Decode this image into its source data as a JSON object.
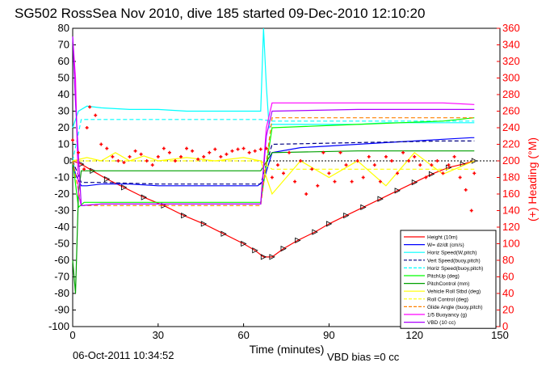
{
  "chart_data": {
    "type": "line",
    "title": "SG502 RossSea Nov 2010, dive 185 started 09-Dec-2010 12:10:20",
    "xlabel": "Time (minutes)",
    "ylabel_right": "(+) Heading (°M)",
    "xlim": [
      0,
      150
    ],
    "ylim_left": [
      -100,
      80
    ],
    "ylim_right": [
      0,
      360
    ],
    "xticks": [
      0,
      30,
      60,
      90,
      120,
      150
    ],
    "yticks_left": [
      80,
      70,
      60,
      50,
      40,
      30,
      20,
      10,
      0,
      -10,
      -20,
      -30,
      -40,
      -50,
      -60,
      -70,
      -80,
      -90,
      -100
    ],
    "yticks_right": [
      360,
      340,
      320,
      300,
      280,
      260,
      240,
      220,
      200,
      180,
      160,
      140,
      120,
      100,
      80,
      60,
      40,
      20,
      0
    ],
    "legend_position": "bottom-right",
    "footer_left": "06-Oct-2011 10:34:52",
    "footer_right": "VBD bias =0 cc",
    "colors": {
      "red": "#ff0000",
      "blue": "#0000ff",
      "cyan": "#00ffff",
      "green": "#00ff00",
      "darkgreen": "#00a000",
      "yellow": "#ffff00",
      "orange": "#ff8000",
      "magenta": "#ff00ff",
      "purple": "#aa00ff",
      "navy": "#000080",
      "heading": "#ff0000"
    },
    "series": [
      {
        "name": "Height (10m)",
        "color": "red",
        "style": "solid",
        "x": [
          0,
          3,
          7,
          12,
          18,
          25,
          32,
          39,
          46,
          53,
          60,
          64,
          67,
          70,
          74,
          79,
          85,
          90,
          96,
          102,
          108,
          114,
          120,
          126,
          132,
          137,
          141
        ],
        "y": [
          0,
          -2,
          -6,
          -11,
          -16,
          -22,
          -27,
          -33,
          -38,
          -44,
          -50,
          -54,
          -58,
          -58,
          -53,
          -48,
          -43,
          -38,
          -33,
          -28,
          -23,
          -18,
          -13,
          -8,
          -4,
          -2,
          0
        ]
      },
      {
        "name": "W= dz/dt (cm/s)",
        "color": "blue",
        "style": "solid",
        "x": [
          0,
          1,
          3,
          5,
          10,
          20,
          30,
          40,
          50,
          60,
          65,
          67,
          70,
          80,
          90,
          100,
          110,
          120,
          130,
          140,
          141
        ],
        "y": [
          0,
          -8,
          -15,
          -15,
          -14,
          -14,
          -15,
          -15,
          -15,
          -15,
          -15,
          -12,
          5,
          8,
          9,
          10,
          11,
          12,
          13,
          14,
          14
        ]
      },
      {
        "name": "Horiz Speed(W,pitch)",
        "color": "cyan",
        "style": "solid",
        "x": [
          0,
          2,
          5,
          10,
          20,
          30,
          40,
          50,
          60,
          66,
          67,
          68,
          69,
          70,
          80,
          90,
          100,
          110,
          120,
          130,
          140,
          141
        ],
        "y": [
          20,
          30,
          33,
          32,
          31,
          31,
          30,
          30,
          30,
          30,
          80,
          45,
          20,
          22,
          22,
          22,
          22,
          23,
          23,
          23,
          23,
          23
        ]
      },
      {
        "name": "Vert Speed(buoy,pitch)",
        "color": "navy",
        "style": "dashed",
        "x": [
          0,
          3,
          10,
          30,
          60,
          66,
          70,
          100,
          130,
          141
        ],
        "y": [
          0,
          -13,
          -13,
          -14,
          -14,
          -14,
          10,
          11,
          12,
          12
        ]
      },
      {
        "name": "Horiz Speed(buoy,pitch)",
        "color": "cyan",
        "style": "dashed",
        "x": [
          0,
          3,
          10,
          30,
          60,
          66,
          70,
          100,
          130,
          141
        ],
        "y": [
          0,
          25,
          25,
          25,
          25,
          25,
          24,
          24,
          24,
          24
        ]
      },
      {
        "name": "PitchUp (deg)",
        "color": "green",
        "style": "solid",
        "x": [
          0,
          2,
          4,
          10,
          30,
          60,
          66,
          70,
          100,
          130,
          141
        ],
        "y": [
          0,
          -28,
          -25,
          -25,
          -25,
          -25,
          -25,
          20,
          22,
          24,
          26
        ]
      },
      {
        "name": "PitchControl (mm)",
        "color": "darkgreen",
        "style": "solid",
        "x": [
          0,
          1,
          2,
          3,
          10,
          30,
          60,
          66,
          70,
          100,
          130,
          141
        ],
        "y": [
          -60,
          -80,
          -20,
          -6,
          -6,
          -6,
          -6,
          -6,
          5,
          6,
          6,
          6
        ]
      },
      {
        "name": "Vehicle Roll Stbd (deg)",
        "color": "yellow",
        "style": "solid",
        "x": [
          0,
          5,
          10,
          15,
          20,
          25,
          30,
          40,
          50,
          60,
          66,
          70,
          80,
          90,
          100,
          110,
          120,
          130,
          141
        ],
        "y": [
          0,
          2,
          0,
          5,
          0,
          3,
          0,
          2,
          0,
          2,
          0,
          -20,
          0,
          -10,
          0,
          -15,
          5,
          -8,
          0
        ]
      },
      {
        "name": "Roll Control (deg)",
        "color": "yellow",
        "style": "dashed",
        "x": [
          0,
          10,
          30,
          60,
          66,
          70,
          100,
          130,
          141
        ],
        "y": [
          0,
          0,
          0,
          0,
          0,
          -5,
          -5,
          -5,
          -5
        ]
      },
      {
        "name": "Glide Angle (buoy,pitch)",
        "color": "orange",
        "style": "dashed",
        "x": [
          0,
          3,
          10,
          30,
          60,
          66,
          70,
          100,
          130,
          141
        ],
        "y": [
          0,
          -27,
          -27,
          -27,
          -27,
          -27,
          26,
          26,
          26,
          26
        ]
      },
      {
        "name": "1/5 Buoyancy (g)",
        "color": "magenta",
        "style": "solid",
        "x": [
          0,
          1,
          2,
          3,
          10,
          30,
          60,
          66,
          68,
          70,
          100,
          130,
          141
        ],
        "y": [
          75,
          50,
          -20,
          -27,
          -26,
          -26,
          -26,
          -26,
          20,
          35,
          35,
          35,
          34
        ]
      },
      {
        "name": "VBD (10 cc)",
        "color": "purple",
        "style": "solid",
        "x": [
          0,
          1,
          3,
          10,
          30,
          60,
          66,
          68,
          70,
          100,
          130,
          141
        ],
        "y": [
          75,
          35,
          -27,
          -26,
          -26,
          -26,
          -26,
          15,
          30,
          31,
          31,
          31
        ]
      }
    ],
    "heading_series": {
      "name": "Heading",
      "color": "heading",
      "x": [
        0,
        2,
        4,
        5,
        6,
        8,
        10,
        12,
        14,
        16,
        18,
        20,
        22,
        24,
        26,
        28,
        30,
        32,
        34,
        36,
        38,
        40,
        42,
        44,
        46,
        48,
        50,
        52,
        54,
        56,
        58,
        60,
        62,
        64,
        66,
        68,
        70,
        72,
        74,
        76,
        78,
        80,
        82,
        84,
        86,
        88,
        90,
        92,
        94,
        96,
        98,
        100,
        102,
        104,
        106,
        108,
        110,
        112,
        114,
        116,
        118,
        120,
        122,
        124,
        126,
        128,
        130,
        132,
        134,
        136,
        138,
        140,
        141
      ],
      "y": [
        225,
        210,
        190,
        240,
        265,
        255,
        220,
        215,
        205,
        200,
        198,
        205,
        212,
        208,
        200,
        195,
        205,
        215,
        210,
        200,
        205,
        215,
        212,
        202,
        205,
        210,
        214,
        205,
        208,
        212,
        214,
        215,
        210,
        212,
        214,
        215,
        180,
        195,
        185,
        210,
        175,
        200,
        160,
        190,
        170,
        210,
        185,
        175,
        210,
        195,
        175,
        200,
        180,
        205,
        195,
        175,
        205,
        200,
        185,
        210,
        200,
        205,
        195,
        180,
        195,
        200,
        185,
        195,
        205,
        180,
        165,
        140,
        185
      ]
    }
  }
}
